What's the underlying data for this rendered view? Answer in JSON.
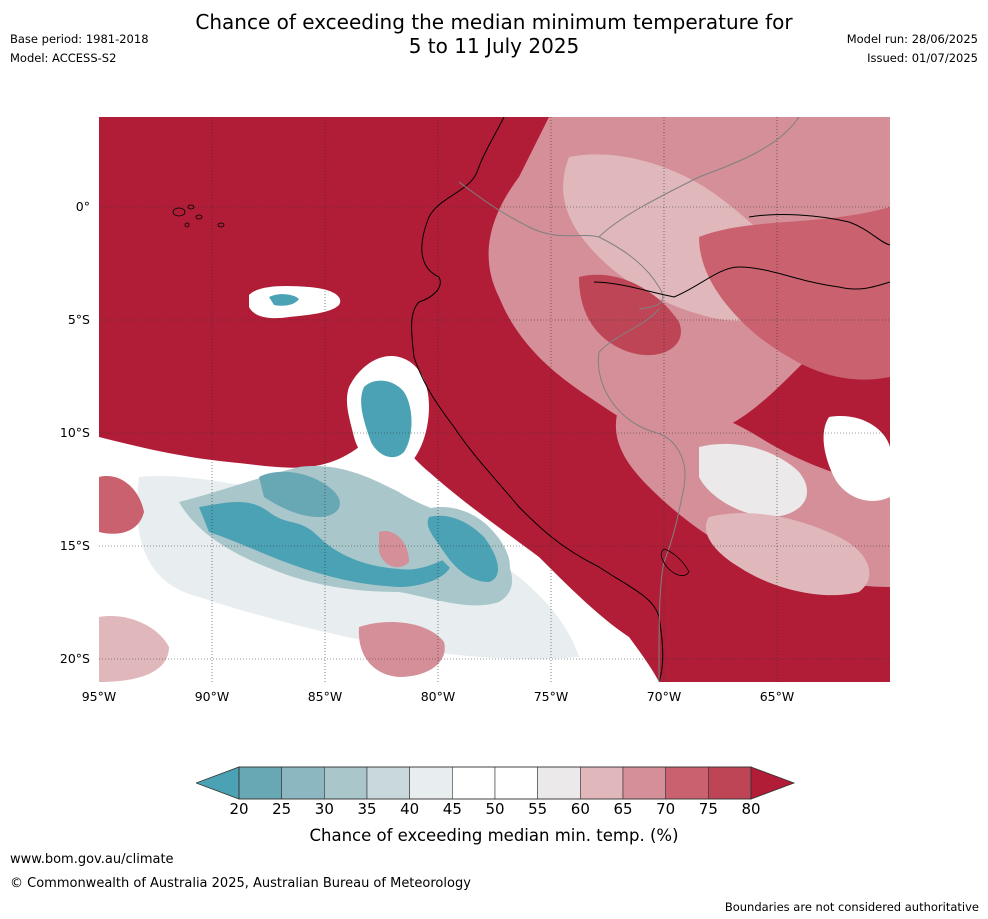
{
  "header": {
    "title_line1": "Chance of exceeding the median minimum temperature for",
    "title_line2": "5 to 11 July 2025",
    "base_period": "Base period: 1981-2018",
    "model": "Model: ACCESS-S2",
    "model_run": "Model run: 28/06/2025",
    "issued": "Issued: 01/07/2025"
  },
  "map": {
    "lat_labels": [
      "0°",
      "5°S",
      "10°S",
      "15°S",
      "20°S"
    ],
    "lon_labels": [
      "95°W",
      "90°W",
      "85°W",
      "80°W",
      "75°W",
      "70°W",
      "65°W"
    ],
    "extent": {
      "lon": [
        -95,
        -60
      ],
      "lat": [
        -21,
        4
      ]
    },
    "colors": {
      "c80plus": "#b11d37",
      "c75": "#be4556",
      "c70": "#c9616e",
      "c65": "#d48f98",
      "c60": "#e0b7bb",
      "c55": "#ebe9ea",
      "c50": "#ffffff",
      "c40": "#e8eef0",
      "c35": "#c9d8da",
      "c30": "#a9c7cb",
      "c25": "#8cb7c0",
      "c20": "#67a8b4",
      "c20minus": "#4aa2b4"
    }
  },
  "colorbar": {
    "ticks": [
      "20",
      "25",
      "30",
      "35",
      "40",
      "45",
      "50",
      "55",
      "60",
      "65",
      "70",
      "75",
      "80"
    ],
    "label": "Chance of exceeding median min. temp. (%)"
  },
  "footer": {
    "website": "www.bom.gov.au/climate",
    "copyright": "© Commonwealth of Australia 2025, Australian Bureau of Meteorology",
    "disclaimer": "Boundaries are not considered authoritative"
  }
}
